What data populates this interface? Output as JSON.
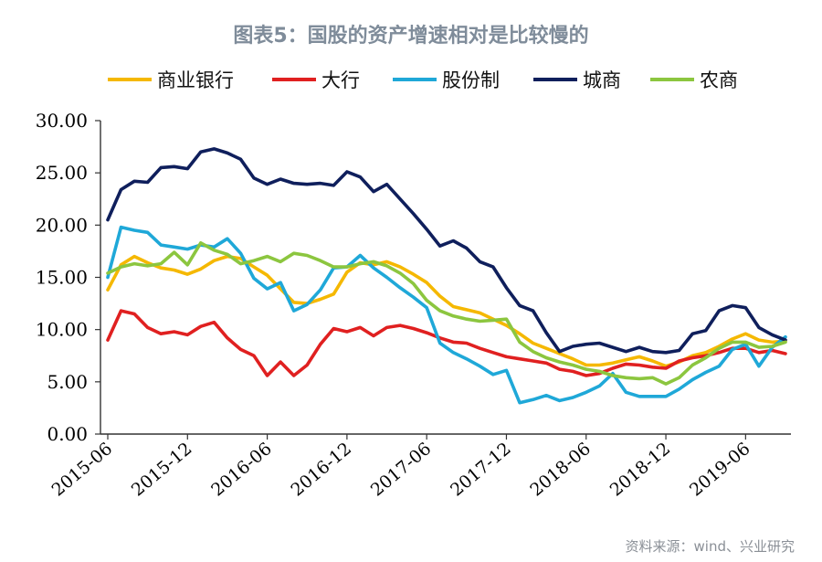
{
  "chart_data": {
    "type": "line",
    "title": "图表5：国股的资产增速相对是比较慢的",
    "source": "资料来源：wind、兴业研究",
    "ylim": [
      0,
      30
    ],
    "yticks": [
      "30.00",
      "25.00",
      "20.00",
      "15.00",
      "10.00",
      "5.00",
      "0.00"
    ],
    "ytick_values": [
      30,
      25,
      20,
      15,
      10,
      5,
      0
    ],
    "xticks": [
      "2015-06",
      "2015-12",
      "2016-06",
      "2016-12",
      "2017-06",
      "2017-12",
      "2018-06",
      "2018-12",
      "2019-06"
    ],
    "xtick_month_index": [
      0,
      6,
      12,
      18,
      24,
      30,
      36,
      42,
      48
    ],
    "x_count": 52,
    "legend_position": "top",
    "series": [
      {
        "name": "商业银行",
        "color": "#f5b800",
        "values": [
          13.8,
          16.2,
          17.0,
          16.4,
          15.9,
          15.7,
          15.3,
          15.8,
          16.6,
          17.0,
          16.8,
          16.0,
          15.2,
          13.9,
          12.6,
          12.5,
          12.9,
          13.4,
          15.5,
          16.4,
          16.2,
          16.5,
          16.0,
          15.3,
          14.5,
          13.2,
          12.2,
          11.9,
          11.6,
          11.0,
          10.4,
          9.6,
          8.7,
          8.2,
          7.7,
          7.2,
          6.6,
          6.6,
          6.8,
          7.1,
          7.4,
          7.0,
          6.5,
          6.9,
          7.5,
          7.8,
          8.4,
          9.1,
          9.6,
          9.0,
          8.8,
          8.9
        ]
      },
      {
        "name": "大行",
        "color": "#e02020",
        "values": [
          9.0,
          11.8,
          11.5,
          10.2,
          9.6,
          9.8,
          9.5,
          10.3,
          10.7,
          9.2,
          8.1,
          7.5,
          5.6,
          6.9,
          5.6,
          6.6,
          8.6,
          10.1,
          9.8,
          10.2,
          9.4,
          10.2,
          10.4,
          10.1,
          9.7,
          9.2,
          8.8,
          8.7,
          8.2,
          7.8,
          7.4,
          7.2,
          7.0,
          6.8,
          6.2,
          6.0,
          5.6,
          5.8,
          6.3,
          6.7,
          6.6,
          6.4,
          6.3,
          7.0,
          7.3,
          7.5,
          7.8,
          8.2,
          8.2,
          7.8,
          8.0,
          7.7
        ]
      },
      {
        "name": "股份制",
        "color": "#1fa8d8",
        "values": [
          15.0,
          19.8,
          19.5,
          19.3,
          18.1,
          17.9,
          17.7,
          18.1,
          17.9,
          18.7,
          17.3,
          14.9,
          13.9,
          14.5,
          11.8,
          12.4,
          13.8,
          15.9,
          16.0,
          17.1,
          15.9,
          15.0,
          14.0,
          13.1,
          12.1,
          8.7,
          7.8,
          7.2,
          6.5,
          5.7,
          6.1,
          3.0,
          3.3,
          3.7,
          3.2,
          3.5,
          4.0,
          4.6,
          5.8,
          4.0,
          3.6,
          3.6,
          3.6,
          4.3,
          5.2,
          5.9,
          6.5,
          8.1,
          8.6,
          6.5,
          8.3,
          9.3
        ]
      },
      {
        "name": "城商",
        "color": "#0f1f5c",
        "values": [
          20.5,
          23.4,
          24.2,
          24.1,
          25.5,
          25.6,
          25.4,
          27.0,
          27.3,
          26.9,
          26.3,
          24.5,
          23.9,
          24.4,
          24.0,
          23.9,
          24.0,
          23.8,
          25.1,
          24.6,
          23.2,
          23.9,
          22.5,
          21.1,
          19.6,
          18.0,
          18.5,
          17.8,
          16.5,
          16.0,
          14.0,
          12.3,
          11.8,
          9.7,
          7.9,
          8.4,
          8.6,
          8.7,
          8.3,
          7.9,
          8.3,
          7.9,
          7.8,
          8.0,
          9.6,
          9.9,
          11.8,
          12.3,
          12.1,
          10.2,
          9.5,
          9.0
        ]
      },
      {
        "name": "农商",
        "color": "#8cc63f",
        "values": [
          15.4,
          16.0,
          16.3,
          16.1,
          16.3,
          17.4,
          16.2,
          18.3,
          17.6,
          17.2,
          16.3,
          16.6,
          17.0,
          16.5,
          17.3,
          17.1,
          16.6,
          16.0,
          16.0,
          16.3,
          16.5,
          16.1,
          15.4,
          14.4,
          12.8,
          11.8,
          11.3,
          11.0,
          10.8,
          10.9,
          11.0,
          8.8,
          7.9,
          7.3,
          6.9,
          6.6,
          6.2,
          6.0,
          5.6,
          5.4,
          5.3,
          5.4,
          4.8,
          5.4,
          6.6,
          7.3,
          8.2,
          8.8,
          8.8,
          8.3,
          8.4,
          8.8
        ]
      }
    ]
  }
}
